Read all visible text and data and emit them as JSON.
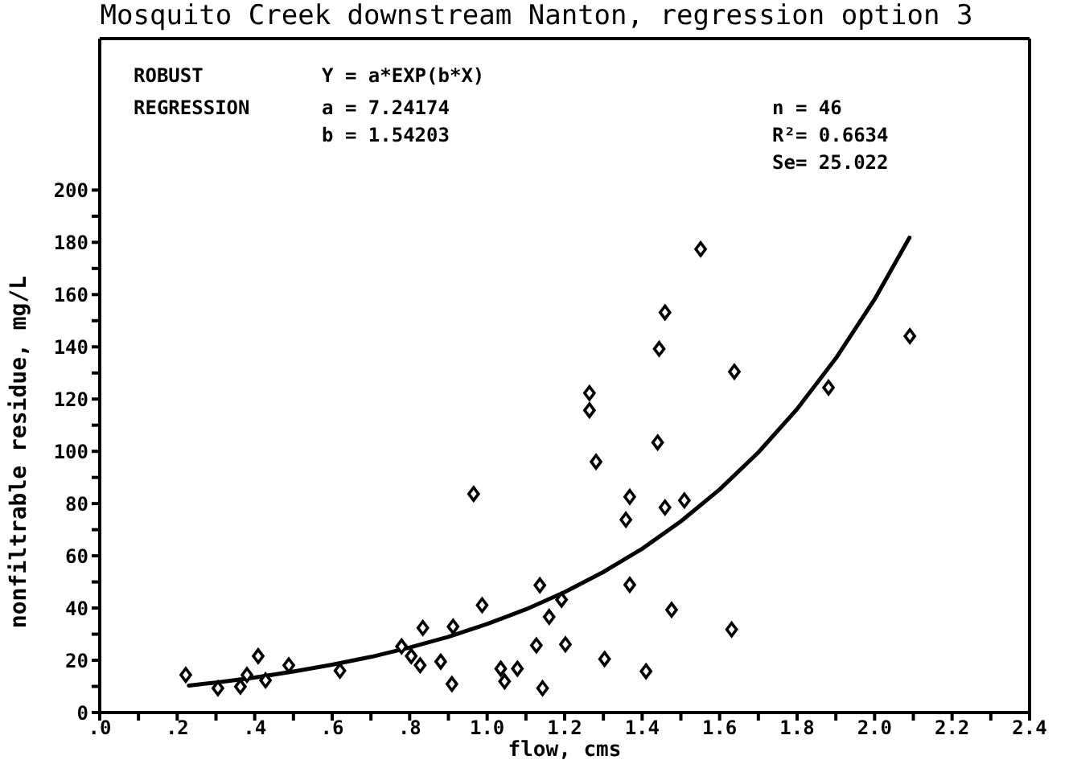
{
  "chart_data": {
    "type": "scatter",
    "title": "Mosquito Creek downstream Nanton, regression option 3",
    "xlabel": "flow, cms",
    "ylabel": "nonfiltrable residue, mg/L",
    "annotations": [
      "ROBUST",
      "Y = a*EXP(b*X)",
      "REGRESSION",
      "a = 7.24174",
      "n = 46",
      "b = 1.54203",
      "R²= 0.6634",
      "Se= 25.022"
    ],
    "xlim": [
      0,
      2.4
    ],
    "ylim": [
      0,
      258
    ],
    "xticks": [
      {
        "value": 0,
        "label": ".0"
      },
      {
        "value": 0.1,
        "label": null
      },
      {
        "value": 0.2,
        "label": ".2"
      },
      {
        "value": 0.3,
        "label": null
      },
      {
        "value": 0.4,
        "label": ".4"
      },
      {
        "value": 0.5,
        "label": null
      },
      {
        "value": 0.6,
        "label": ".6"
      },
      {
        "value": 0.7,
        "label": null
      },
      {
        "value": 0.8,
        "label": ".8"
      },
      {
        "value": 0.9,
        "label": null
      },
      {
        "value": 1,
        "label": "1.0"
      },
      {
        "value": 1.1,
        "label": null
      },
      {
        "value": 1.2,
        "label": "1.2"
      },
      {
        "value": 1.3,
        "label": null
      },
      {
        "value": 1.4,
        "label": "1.4"
      },
      {
        "value": 1.5,
        "label": null
      },
      {
        "value": 1.6,
        "label": "1.6"
      },
      {
        "value": 1.7,
        "label": null
      },
      {
        "value": 1.8,
        "label": "1.8"
      },
      {
        "value": 1.9,
        "label": null
      },
      {
        "value": 2,
        "label": "2.0"
      },
      {
        "value": 2.1,
        "label": null
      },
      {
        "value": 2.2,
        "label": "2.2"
      },
      {
        "value": 2.3,
        "label": null
      },
      {
        "value": 2.4,
        "label": "2.4"
      }
    ],
    "yticks": [
      0,
      {
        "value": 10,
        "label": null
      },
      20,
      {
        "value": 30,
        "label": null
      },
      40,
      {
        "value": 50,
        "label": null
      },
      60,
      {
        "value": 70,
        "label": null
      },
      80,
      {
        "value": 90,
        "label": null
      },
      100,
      {
        "value": 110,
        "label": null
      },
      120,
      {
        "value": 130,
        "label": null
      },
      140,
      {
        "value": 150,
        "label": null
      },
      160,
      {
        "value": 170,
        "label": null
      },
      180,
      {
        "value": 190,
        "label": null
      },
      200
    ],
    "marker": "diamond",
    "series": [
      {
        "type": "scatter",
        "color": "#000000",
        "x": [
          0.222,
          0.305,
          0.363,
          0.38,
          0.409,
          0.428,
          0.488,
          0.62,
          0.779,
          0.804,
          0.827,
          0.834,
          0.88,
          0.909,
          0.912,
          0.965,
          0.987,
          1.035,
          1.045,
          1.078,
          1.127,
          1.136,
          1.143,
          1.16,
          1.192,
          1.202,
          1.264,
          1.264,
          1.281,
          1.303,
          1.358,
          1.368,
          1.368,
          1.41,
          1.44,
          1.444,
          1.459,
          1.459,
          1.476,
          1.509,
          1.551,
          1.631,
          1.638,
          1.881,
          2.091
        ],
        "values": [
          14.4,
          9.3,
          9.9,
          14.4,
          21.6,
          12.3,
          18.1,
          16,
          25.3,
          21.6,
          18.1,
          32.4,
          19.5,
          10.9,
          32.9,
          83.7,
          41.1,
          16.8,
          11.9,
          16.8,
          25.7,
          48.7,
          9.3,
          36.6,
          43.2,
          26.1,
          122.3,
          115.7,
          96,
          20.5,
          73.8,
          82.6,
          48.9,
          15.8,
          103.4,
          139.2,
          153.2,
          78.5,
          39.3,
          81.2,
          177.4,
          31.8,
          130.5,
          124.4,
          144.1
        ]
      },
      {
        "type": "line",
        "color": "#000000",
        "marker": "none",
        "x": [
          0.23,
          0.3,
          0.4,
          0.5,
          0.6,
          0.7,
          0.8,
          0.9,
          1,
          1.1,
          1.2,
          1.3,
          1.4,
          1.5,
          1.6,
          1.7,
          1.8,
          1.9,
          2,
          2.09
        ],
        "values": [
          10.3,
          11.5,
          13.4,
          15.7,
          18.3,
          21.3,
          24.9,
          29,
          33.9,
          39.5,
          46.1,
          53.8,
          62.7,
          73.2,
          85.4,
          99.6,
          116.2,
          135.6,
          158.2,
          181.8
        ]
      }
    ]
  }
}
